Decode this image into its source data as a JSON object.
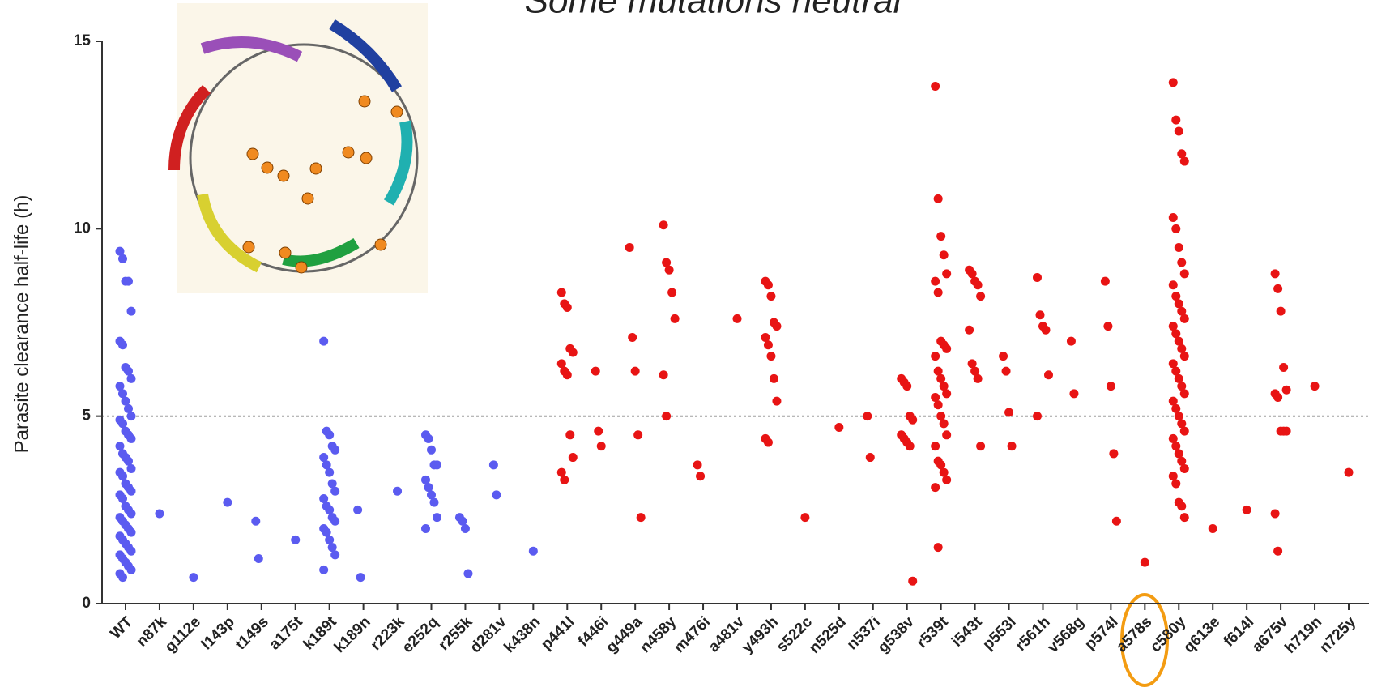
{
  "chart_data": {
    "type": "strip",
    "title": "Some mutations neutral",
    "y_label": "Parasite clearance half-life (h)",
    "categories": [
      "WT",
      "n87k",
      "g112e",
      "l143p",
      "t149s",
      "a175t",
      "k189t",
      "k189n",
      "r223k",
      "e252q",
      "r255k",
      "d281v",
      "k438n",
      "p441l",
      "f446i",
      "g449a",
      "n458y",
      "m476i",
      "a481v",
      "y493h",
      "s522c",
      "n525d",
      "n537i",
      "g538v",
      "r539t",
      "i543t",
      "p553l",
      "r561h",
      "v568g",
      "p574l",
      "a578s",
      "c580y",
      "q613e",
      "f614l",
      "a675v",
      "h719n",
      "n725y"
    ],
    "ylim": [
      0,
      15
    ],
    "yticks": [
      0,
      5,
      10,
      15
    ],
    "reference_line": 5,
    "series": [
      {
        "color": "#5b5bf0",
        "values": [
          [
            9.4,
            9.2,
            8.6,
            8.6,
            7.8,
            7.0,
            6.9,
            6.3,
            6.2,
            6.0,
            5.8,
            5.6,
            5.4,
            5.2,
            5.0,
            4.9,
            4.8,
            4.6,
            4.5,
            4.4,
            4.2,
            4.0,
            3.9,
            3.8,
            3.6,
            3.5,
            3.4,
            3.2,
            3.1,
            3.0,
            2.9,
            2.8,
            2.6,
            2.5,
            2.4,
            2.3,
            2.2,
            2.1,
            2.0,
            1.9,
            1.8,
            1.7,
            1.6,
            1.5,
            1.4,
            1.3,
            1.2,
            1.1,
            1.0,
            0.9,
            0.8,
            0.7
          ],
          [
            2.4
          ],
          [
            0.7
          ],
          [
            2.7
          ],
          [
            2.2,
            1.2
          ],
          [
            1.7
          ],
          [
            7.0,
            4.6,
            4.5,
            4.2,
            4.1,
            3.9,
            3.7,
            3.5,
            3.2,
            3.0,
            2.8,
            2.6,
            2.5,
            2.3,
            2.2,
            2.0,
            1.9,
            1.7,
            1.5,
            1.3,
            0.9
          ],
          [
            2.5,
            0.7
          ],
          [
            3.0
          ],
          [
            4.5,
            4.4,
            4.1,
            3.7,
            3.7,
            3.3,
            3.1,
            2.9,
            2.7,
            2.3,
            2.0
          ],
          [
            2.3,
            2.2,
            2.0,
            0.8
          ],
          [
            3.7,
            2.9
          ],
          [
            1.4
          ],
          [],
          [],
          [],
          [],
          [],
          [],
          [],
          [],
          [],
          [],
          [],
          [],
          [],
          [],
          [],
          [],
          [],
          [],
          [],
          [],
          [],
          [],
          [],
          [],
          []
        ]
      },
      {
        "color": "#e81414",
        "values": [
          [],
          [],
          [],
          [],
          [],
          [],
          [],
          [],
          [],
          [],
          [],
          [],
          [],
          [
            8.3,
            8.0,
            7.9,
            6.8,
            6.7,
            6.4,
            6.2,
            6.1,
            4.5,
            3.9,
            3.5,
            3.3
          ],
          [
            6.2,
            4.6,
            4.2
          ],
          [
            9.5,
            7.1,
            6.2,
            4.5,
            2.3
          ],
          [
            10.1,
            9.1,
            8.9,
            8.3,
            7.6,
            6.1,
            5.0
          ],
          [
            3.7,
            3.4
          ],
          [
            7.6
          ],
          [
            8.6,
            8.5,
            8.2,
            7.5,
            7.4,
            7.1,
            6.9,
            6.6,
            6.0,
            5.4,
            4.4,
            4.3
          ],
          [
            2.3
          ],
          [
            4.7
          ],
          [
            5.0,
            3.9
          ],
          [
            6.0,
            5.9,
            5.8,
            5.0,
            4.9,
            4.5,
            4.4,
            4.3,
            4.2,
            0.6
          ],
          [
            13.8,
            10.8,
            9.8,
            9.3,
            8.8,
            8.6,
            8.3,
            7.0,
            6.9,
            6.8,
            6.6,
            6.2,
            6.0,
            5.8,
            5.6,
            5.5,
            5.3,
            5.0,
            4.8,
            4.5,
            4.2,
            3.8,
            3.7,
            3.5,
            3.3,
            3.1,
            1.5
          ],
          [
            8.9,
            8.8,
            8.6,
            8.5,
            8.2,
            7.3,
            6.4,
            6.2,
            6.0,
            4.2
          ],
          [
            6.6,
            6.2,
            5.1,
            4.2
          ],
          [
            8.7,
            7.7,
            7.4,
            7.3,
            6.1,
            5.0
          ],
          [
            7.0,
            5.6
          ],
          [
            8.6,
            7.4,
            5.8,
            4.0,
            2.2
          ],
          [
            1.1
          ],
          [
            13.9,
            12.9,
            12.6,
            12.0,
            11.8,
            10.3,
            10.0,
            9.5,
            9.1,
            8.8,
            8.5,
            8.2,
            8.0,
            7.8,
            7.6,
            7.4,
            7.2,
            7.0,
            6.8,
            6.6,
            6.4,
            6.2,
            6.0,
            5.8,
            5.6,
            5.4,
            5.2,
            5.0,
            4.8,
            4.6,
            4.4,
            4.2,
            4.0,
            3.8,
            3.6,
            3.4,
            3.2,
            2.7,
            2.6,
            2.3
          ],
          [
            2.0
          ],
          [
            2.5
          ],
          [
            8.8,
            8.4,
            7.8,
            6.3,
            5.7,
            5.6,
            5.5,
            4.6,
            4.6,
            4.6,
            2.4,
            1.4
          ],
          [
            5.8
          ],
          [
            3.5
          ]
        ]
      }
    ]
  }
}
